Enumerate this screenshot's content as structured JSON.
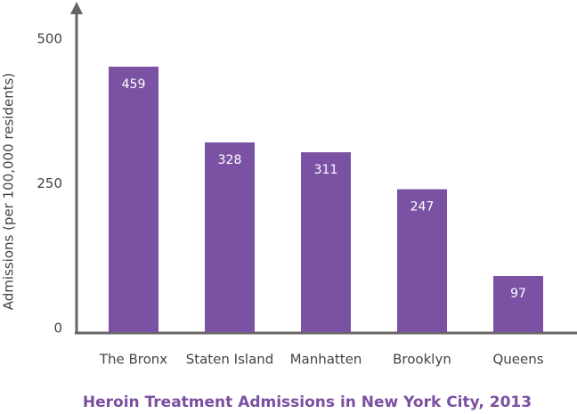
{
  "chart_data": {
    "type": "bar",
    "title": "Heroin Treatment Admissions in New York City, 2013",
    "y_label": "Admissions (per 100,000 residents)",
    "categories": [
      "The Bronx",
      "Staten Island",
      "Manhatten",
      "Brooklyn",
      "Queens"
    ],
    "values": [
      459,
      328,
      311,
      247,
      97
    ],
    "color": "#7b52a3",
    "ylim": [
      0,
      565
    ],
    "yticks": [
      0,
      250,
      500
    ],
    "grid": false
  }
}
